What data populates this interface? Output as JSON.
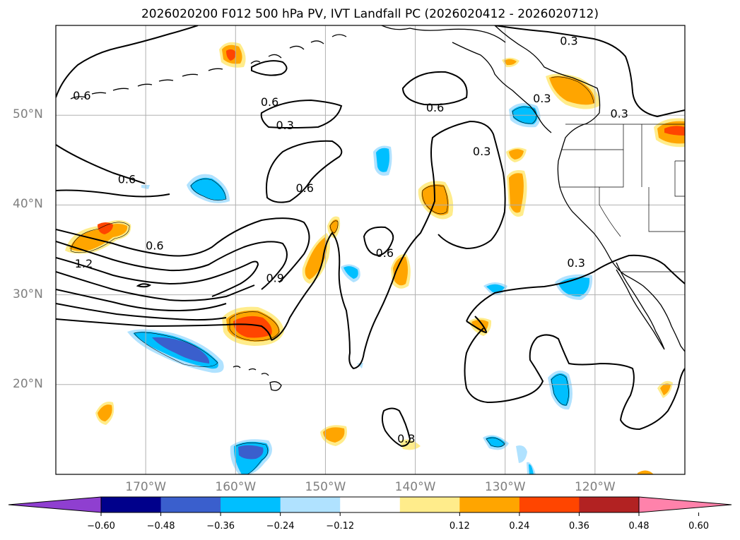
{
  "title": "2026020200 F012 500 hPa PV, IVT Landfall PC (2026020412 - 2026020712)",
  "map": {
    "extent": {
      "lon_min": -180,
      "lon_max": -110,
      "lat_min": 10,
      "lat_max": 60
    },
    "lat_ticks": [
      {
        "value": 20,
        "label": "20°N"
      },
      {
        "value": 30,
        "label": "30°N"
      },
      {
        "value": 40,
        "label": "40°N"
      },
      {
        "value": 50,
        "label": "50°N"
      }
    ],
    "lon_ticks": [
      {
        "value": -170,
        "label": "170°W"
      },
      {
        "value": -160,
        "label": "160°W"
      },
      {
        "value": -150,
        "label": "150°W"
      },
      {
        "value": -140,
        "label": "140°W"
      },
      {
        "value": -130,
        "label": "130°W"
      },
      {
        "value": -120,
        "label": "120°W"
      }
    ],
    "gridlines": true,
    "contour_labels": [
      {
        "text": "0.6",
        "lon": -177.1,
        "lat": 52.2
      },
      {
        "text": "0.6",
        "lon": -156.2,
        "lat": 51.5
      },
      {
        "text": "0.3",
        "lon": -122.9,
        "lat": 58.3
      },
      {
        "text": "0.6",
        "lon": -137.8,
        "lat": 50.9
      },
      {
        "text": "0.3",
        "lon": -125.9,
        "lat": 51.9
      },
      {
        "text": "0.3",
        "lon": -117.3,
        "lat": 50.2
      },
      {
        "text": "0.3",
        "lon": -154.5,
        "lat": 48.9
      },
      {
        "text": "0.3",
        "lon": -132.6,
        "lat": 46.0
      },
      {
        "text": "0.6",
        "lon": -172.1,
        "lat": 42.9
      },
      {
        "text": "0.6",
        "lon": -152.3,
        "lat": 41.9
      },
      {
        "text": "0.6",
        "lon": -169.0,
        "lat": 35.5
      },
      {
        "text": "1.2",
        "lon": -176.9,
        "lat": 33.5
      },
      {
        "text": "0.6",
        "lon": -143.4,
        "lat": 34.7
      },
      {
        "text": "0.9",
        "lon": -155.6,
        "lat": 31.9
      },
      {
        "text": "0.3",
        "lon": -122.1,
        "lat": 33.6
      },
      {
        "text": "0.3",
        "lon": -141.0,
        "lat": 14.0
      }
    ]
  },
  "colorbar": {
    "ticks": [
      "−0.60",
      "−0.48",
      "−0.36",
      "−0.24",
      "−0.12",
      "0.12",
      "0.24",
      "0.36",
      "0.48",
      "0.60"
    ],
    "colors": [
      "#8f3fd0",
      "#00008b",
      "#3a5fcd",
      "#00bfff",
      "#b0e2ff",
      "#ffffff",
      "#ffec8b",
      "#ffa500",
      "#ff4500",
      "#b22222",
      "#ff82ab"
    ]
  },
  "fill_colors": {
    "pos1": "#ffec8b",
    "pos2": "#ffa500",
    "pos3": "#ff4500",
    "neg1": "#b0e2ff",
    "neg2": "#00bfff",
    "neg3": "#3a5fcd"
  }
}
